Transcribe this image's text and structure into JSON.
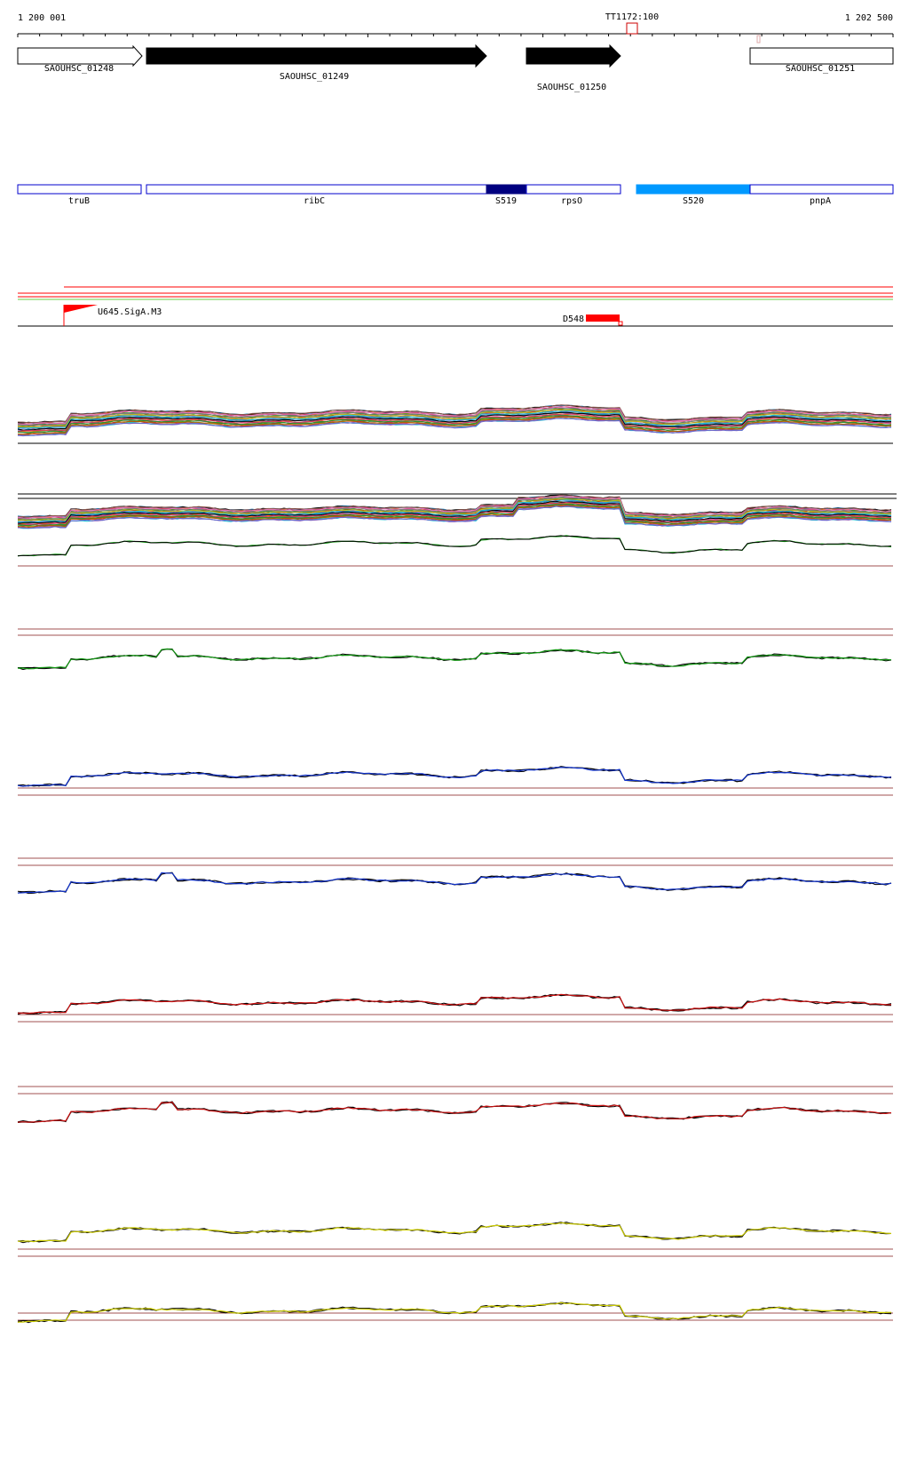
{
  "ruler": {
    "start_label": "1 200 001",
    "end_label": "1 202 500",
    "marker_label": "TT1172:100"
  },
  "genes": [
    {
      "name": "SAOUHSC_01248",
      "strand": "+",
      "filled": false
    },
    {
      "name": "SAOUHSC_01249",
      "strand": "+",
      "filled": true
    },
    {
      "name": "SAOUHSC_01250",
      "strand": "+",
      "filled": true
    },
    {
      "name": "SAOUHSC_01251",
      "strand": "+",
      "filled": false
    }
  ],
  "annotations": [
    {
      "name": "truB",
      "kind": "gene"
    },
    {
      "name": "ribC",
      "kind": "gene"
    },
    {
      "name": "S519",
      "kind": "segment",
      "color": "#000080"
    },
    {
      "name": "rpsO",
      "kind": "gene"
    },
    {
      "name": "S520",
      "kind": "segment",
      "color": "#0099ff"
    },
    {
      "name": "pnpA",
      "kind": "gene"
    }
  ],
  "features": {
    "promoter_label": "U645.SigA.M3",
    "promoter_color": "#ff0000",
    "terminator_label": "D548",
    "terminator_color": "#ff0000"
  },
  "colors": {
    "ruler": "#000000",
    "gene_box": "#0000cc",
    "guide_line": "#a05050",
    "promoter_track_red": "#ff0000",
    "promoter_track_green": "#66cc44",
    "green_track": "#119911",
    "blue_track": "#1133cc",
    "red_track": "#cc1111",
    "yellow_track": "#cccc00",
    "black": "#000000"
  },
  "multi_series_palette": [
    "#1f77b4",
    "#ff7f0e",
    "#2ca02c",
    "#d62728",
    "#9467bd",
    "#8c564b",
    "#e377c2",
    "#7f7f7f",
    "#bcbd22",
    "#17becf",
    "#000000",
    "#cc3366",
    "#338833",
    "#aa6600",
    "#6666cc"
  ]
}
